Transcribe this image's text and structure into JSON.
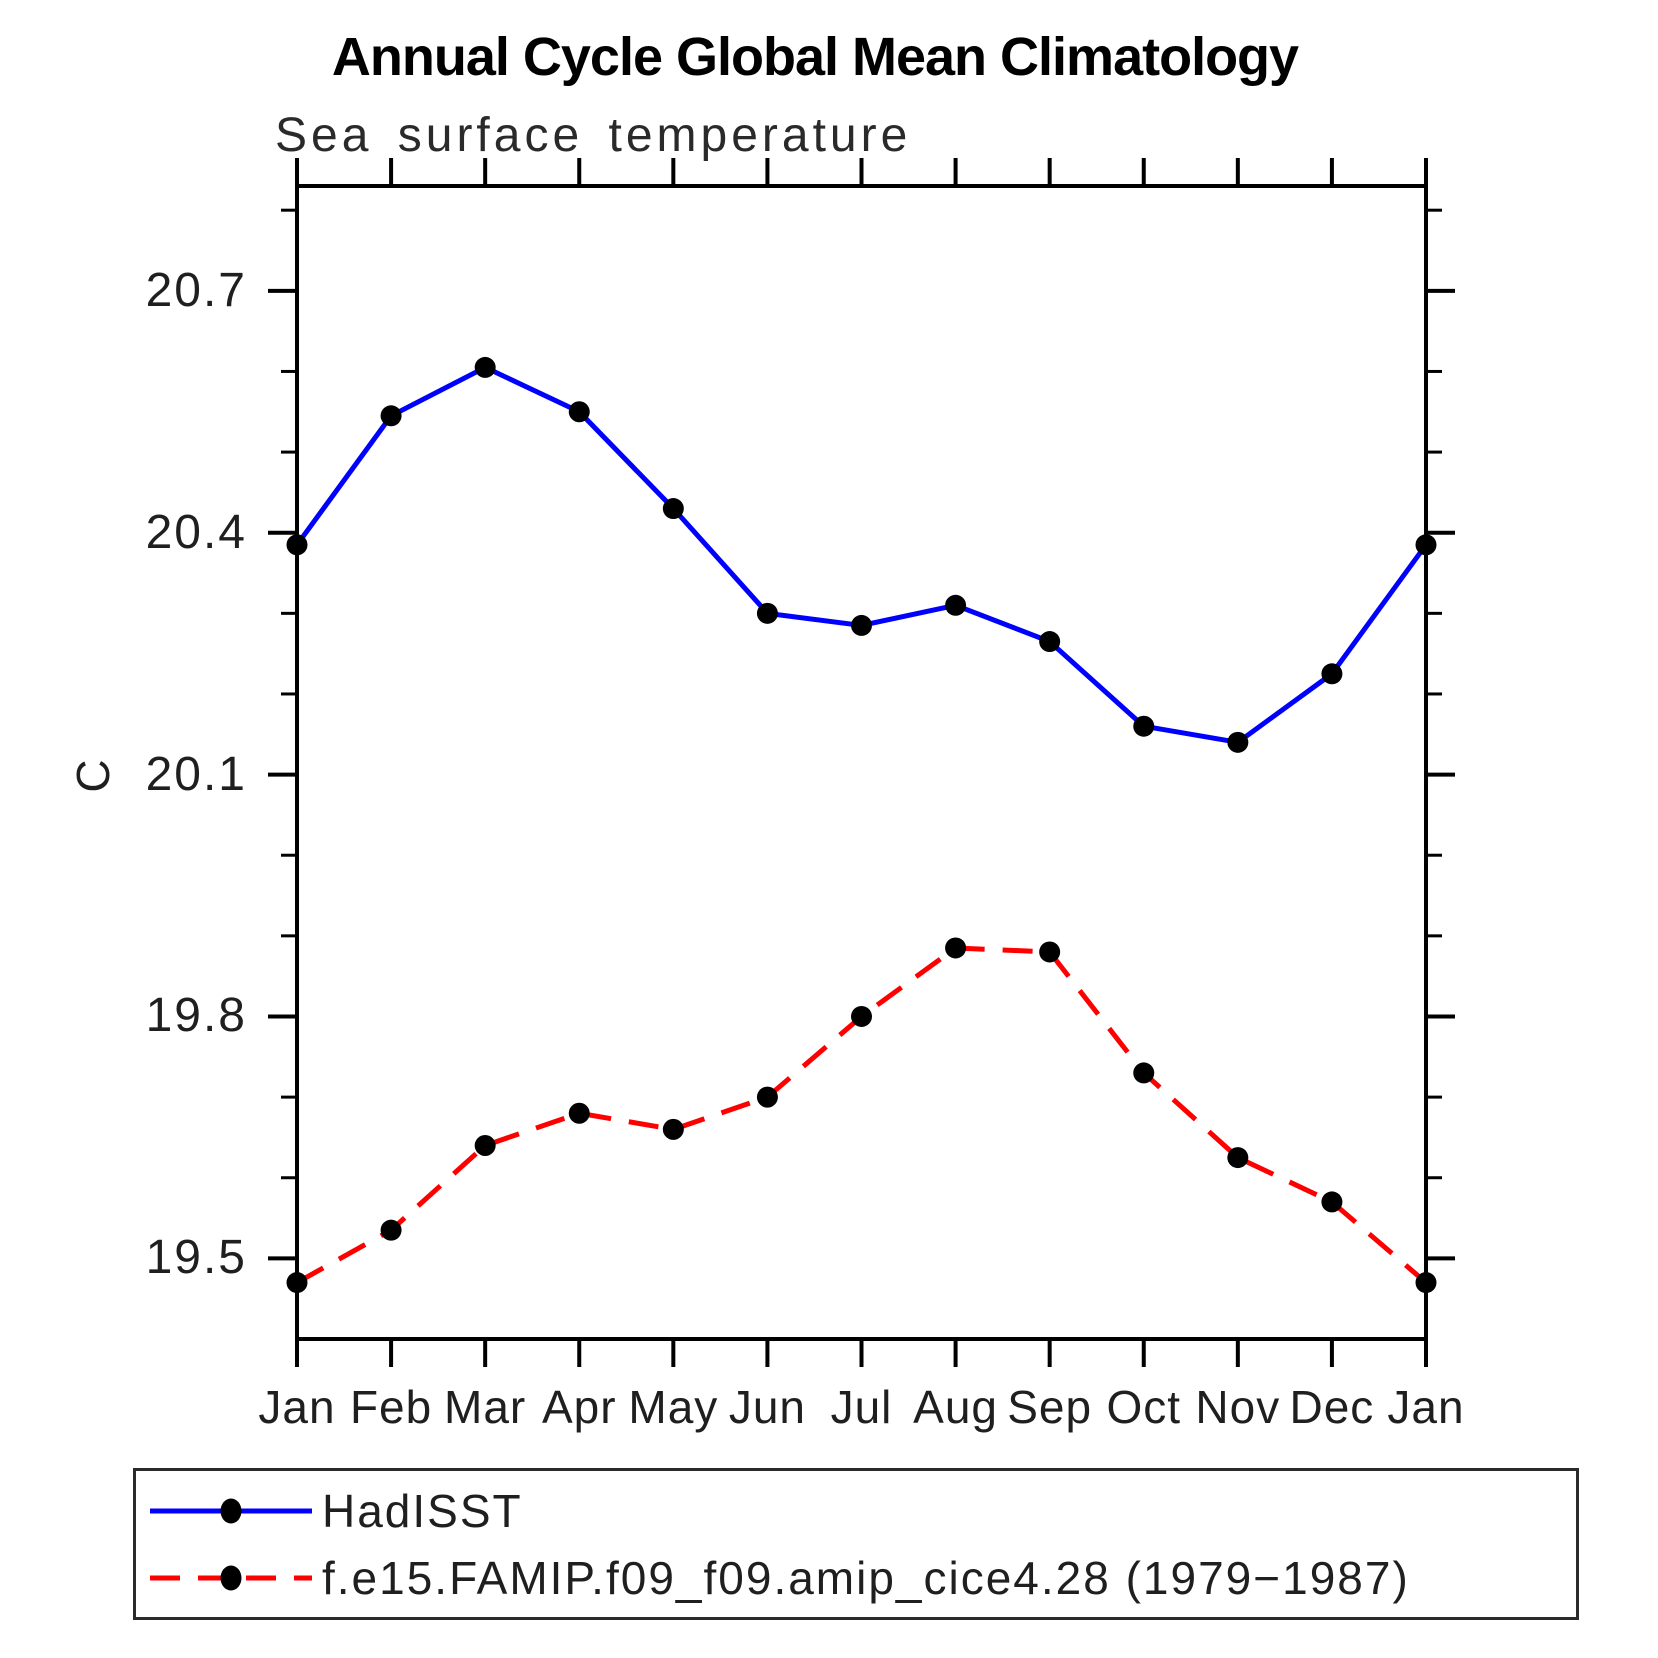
{
  "chart_data": {
    "type": "line",
    "title": "Annual Cycle Global Mean Climatology",
    "subtitle": "Sea surface temperature",
    "ylabel": "C",
    "xlabel": "",
    "categories": [
      "Jan",
      "Feb",
      "Mar",
      "Apr",
      "May",
      "Jun",
      "Jul",
      "Aug",
      "Sep",
      "Oct",
      "Nov",
      "Dec",
      "Jan"
    ],
    "ytick_labels": [
      "20.7",
      "20.4",
      "20.1",
      "19.8",
      "19.5"
    ],
    "yticks": [
      20.7,
      20.4,
      20.1,
      19.8,
      19.5
    ],
    "minor_yticks": [
      20.8,
      20.6,
      20.5,
      20.3,
      20.2,
      20.0,
      19.9,
      19.7,
      19.6
    ],
    "ylim": [
      19.4,
      20.83
    ],
    "grid": false,
    "legend_position": "bottom",
    "axis_color": "#000000",
    "marker_color": "#000000",
    "series": [
      {
        "name": "HadISST",
        "color": "#0000ff",
        "line_style": "solid",
        "marker": "circle",
        "values": [
          20.385,
          20.545,
          20.605,
          20.55,
          20.43,
          20.3,
          20.285,
          20.31,
          20.265,
          20.16,
          20.14,
          20.225,
          20.385
        ]
      },
      {
        "name": "f.e15.FAMIP.f09_f09.amip_cice4.28 (1979−1987)",
        "color": "#ff0000",
        "line_style": "dashed",
        "marker": "circle",
        "values": [
          19.47,
          19.535,
          19.64,
          19.68,
          19.66,
          19.7,
          19.8,
          19.885,
          19.88,
          19.73,
          19.625,
          19.57,
          19.47
        ]
      }
    ]
  }
}
